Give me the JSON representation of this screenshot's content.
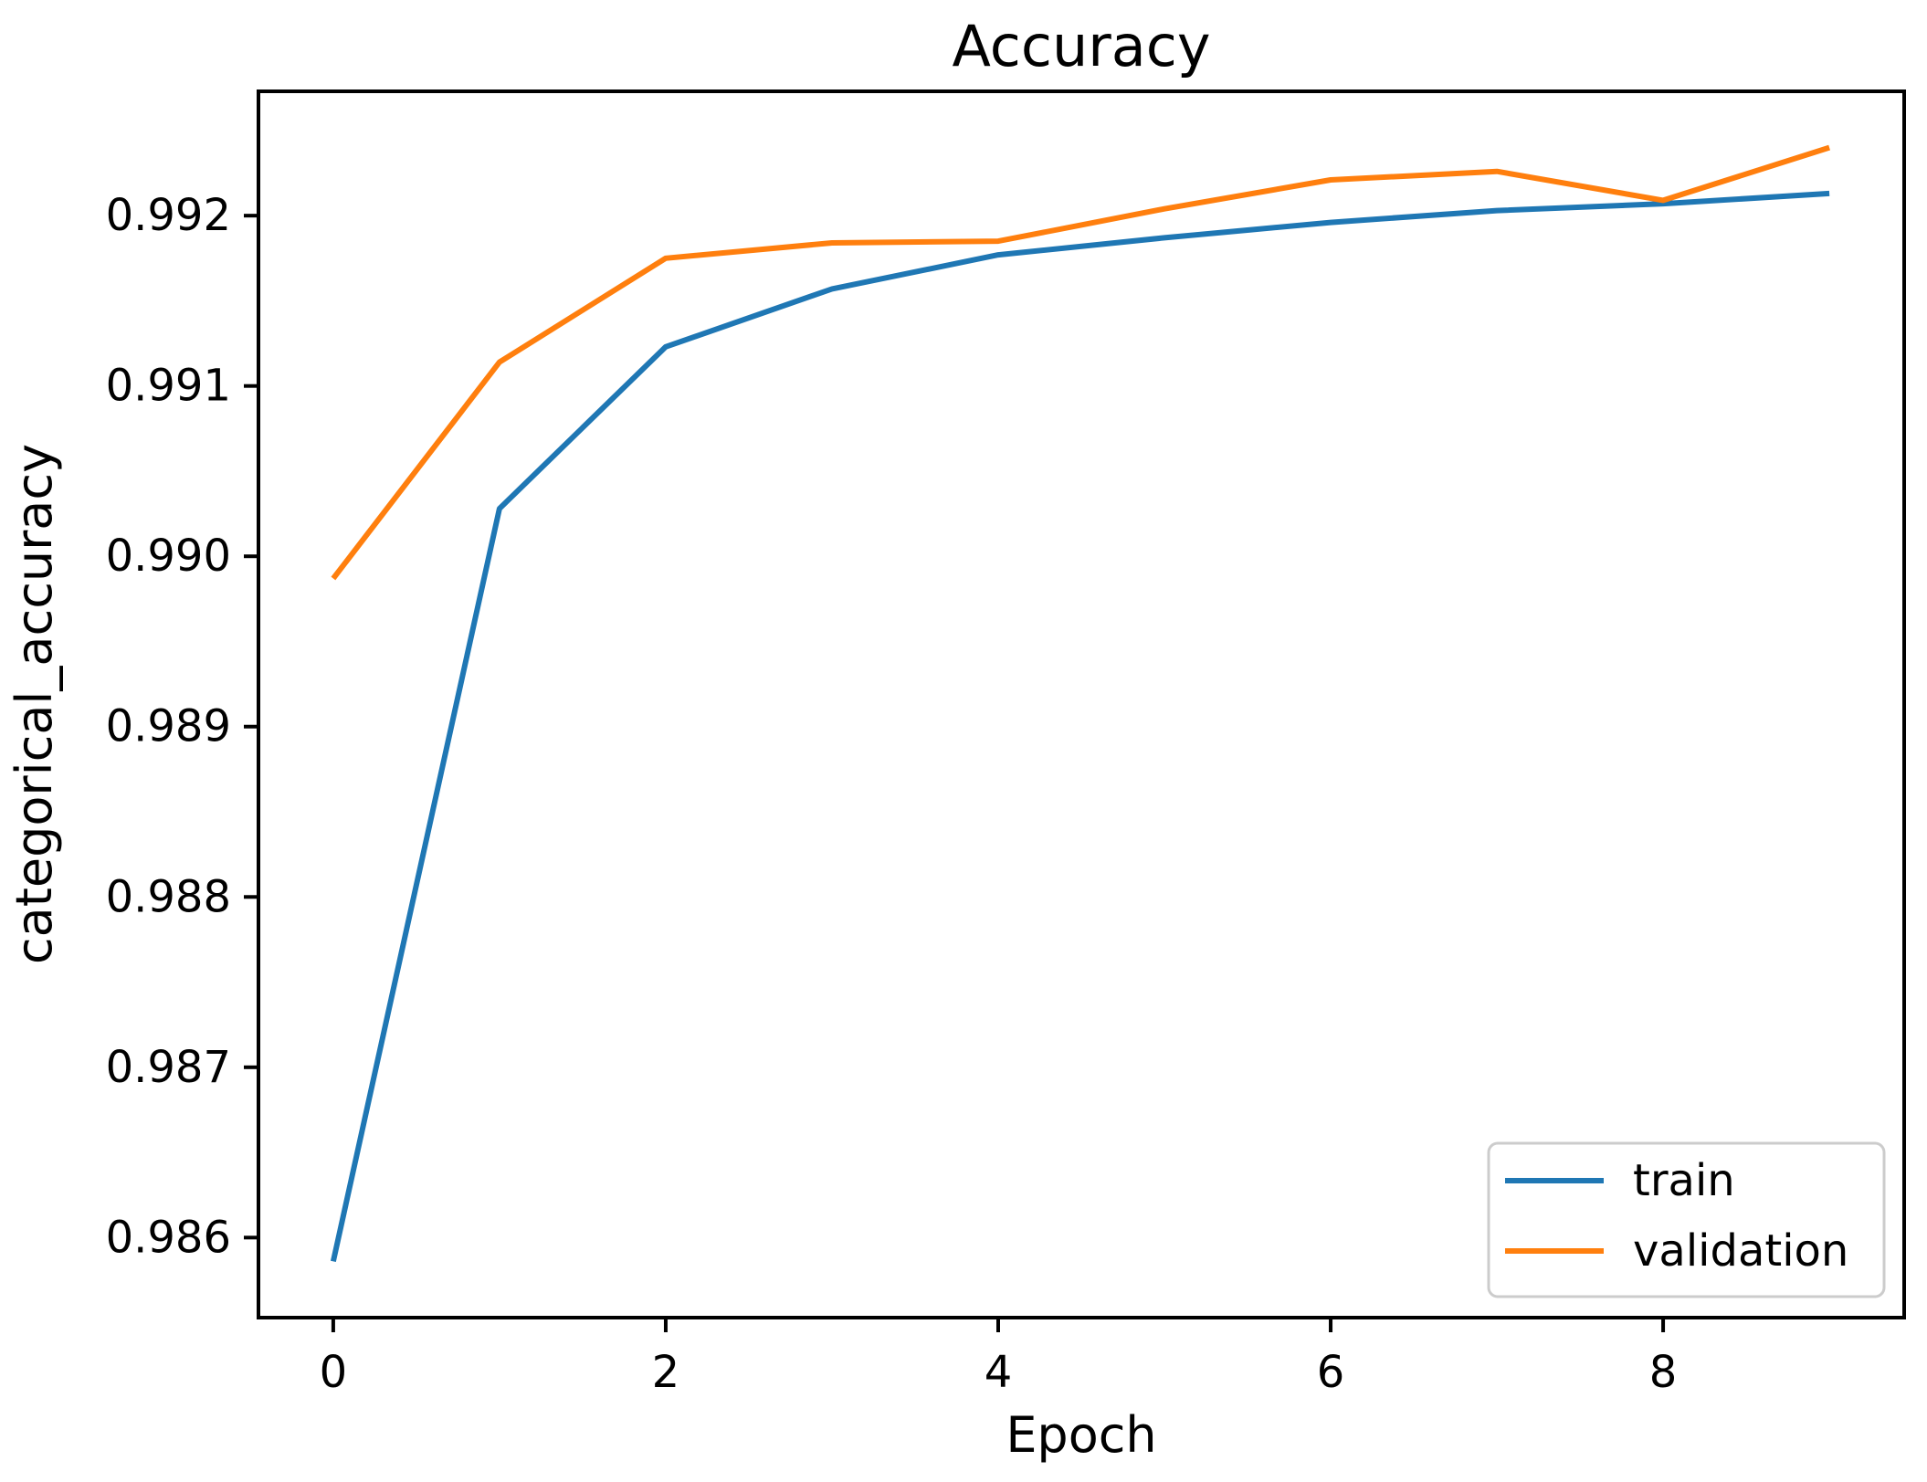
{
  "chart_data": {
    "type": "line",
    "title": "Accuracy",
    "xlabel": "Epoch",
    "ylabel": "categorical_accuracy",
    "x": [
      0,
      1,
      2,
      3,
      4,
      5,
      6,
      7,
      8,
      9
    ],
    "series": [
      {
        "name": "train",
        "color": "#1f77b4",
        "values": [
          0.98586,
          0.99028,
          0.99123,
          0.99157,
          0.99177,
          0.99187,
          0.99196,
          0.99203,
          0.99207,
          0.99213
        ]
      },
      {
        "name": "validation",
        "color": "#ff7f0e",
        "values": [
          0.98987,
          0.99114,
          0.99175,
          0.99184,
          0.99185,
          0.99204,
          0.99221,
          0.99226,
          0.99209,
          0.9924
        ]
      }
    ],
    "xticks": [
      0,
      2,
      4,
      6,
      8
    ],
    "xtick_labels": [
      "0",
      "2",
      "4",
      "6",
      "8"
    ],
    "yticks": [
      0.986,
      0.987,
      0.988,
      0.989,
      0.99,
      0.991,
      0.992
    ],
    "ytick_labels": [
      "0.986",
      "0.987",
      "0.988",
      "0.989",
      "0.990",
      "0.991",
      "0.992"
    ],
    "xlim": [
      -0.45,
      9.45
    ],
    "ylim": [
      0.98553,
      0.99273
    ],
    "grid": false,
    "legend": {
      "position": "lower right",
      "entries": [
        "train",
        "validation"
      ],
      "face_color": "#ffffff",
      "edge_color": "#cccccc"
    },
    "line_color_train": "#1f77b4",
    "line_color_validation": "#ff7f0e",
    "spine_color": "#000000",
    "text_color": "#000000",
    "background": "#ffffff"
  }
}
